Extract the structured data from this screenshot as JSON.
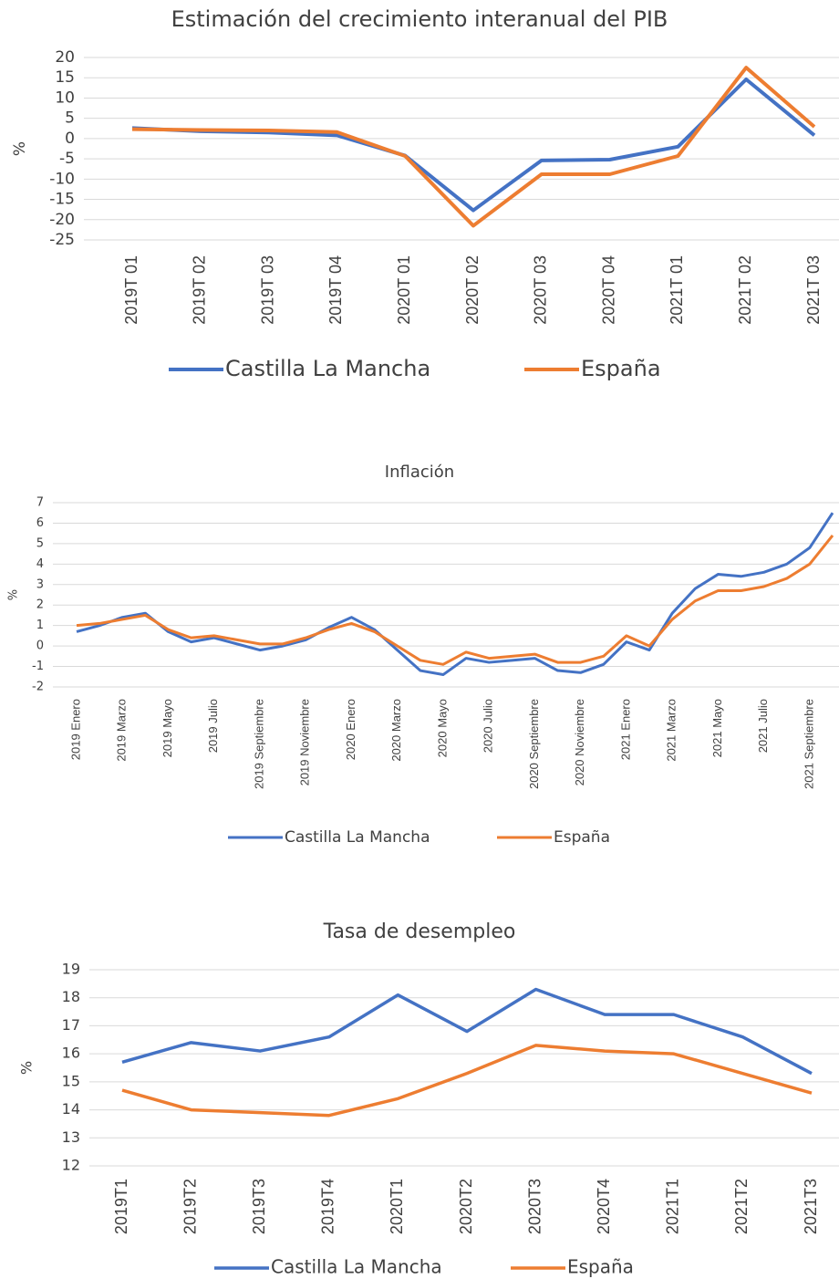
{
  "chart_data": [
    {
      "type": "line",
      "title": "Estimación del crecimiento interanual del PIB",
      "y_label": "%",
      "categories": [
        "2019T 01",
        "2019T 02",
        "2019T 03",
        "2019T 04",
        "2020T 01",
        "2020T 02",
        "2020T 03",
        "2020T 04",
        "2021T 01",
        "2021T 02",
        "2021T 03"
      ],
      "series": [
        {
          "name": "Castilla La Mancha",
          "color": "#4472c4",
          "values": [
            2.6,
            1.8,
            1.5,
            0.8,
            -4.2,
            -17.7,
            -5.4,
            -5.2,
            -2.0,
            14.6,
            0.8
          ]
        },
        {
          "name": "España",
          "color": "#ed7d31",
          "values": [
            2.3,
            2.1,
            2.0,
            1.6,
            -4.3,
            -21.5,
            -8.8,
            -8.8,
            -4.3,
            17.5,
            2.9
          ]
        }
      ],
      "ylim": [
        -25,
        20
      ],
      "yticks": [
        -25,
        -20,
        -15,
        -10,
        -5,
        0,
        5,
        10,
        15,
        20
      ],
      "grid": true,
      "legend": "bottom"
    },
    {
      "type": "line",
      "title": "Inflación",
      "y_label": "%",
      "categories": [
        "2019 Enero",
        null,
        "2019 Marzo",
        null,
        "2019 Mayo",
        null,
        "2019 Julio",
        null,
        "2019 Septiembre",
        null,
        "2019 Noviembre",
        null,
        "2020 Enero",
        null,
        "2020 Marzo",
        null,
        "2020 Mayo",
        null,
        "2020 Julio",
        null,
        "2020 Septiembre",
        null,
        "2020 Noviembre",
        null,
        "2021 Enero",
        null,
        "2021 Marzo",
        null,
        "2021 Mayo",
        null,
        "2021 Julio",
        null,
        "2021 Septiembre",
        null
      ],
      "series": [
        {
          "name": "Castilla La Mancha",
          "color": "#4472c4",
          "values": [
            0.7,
            1.0,
            1.4,
            1.6,
            0.7,
            0.2,
            0.4,
            0.1,
            -0.2,
            0.0,
            0.3,
            0.9,
            1.4,
            0.8,
            -0.2,
            -1.2,
            -1.4,
            -0.6,
            -0.8,
            -0.7,
            -0.6,
            -1.2,
            -1.3,
            -0.9,
            0.2,
            -0.2,
            1.6,
            2.8,
            3.5,
            3.4,
            3.6,
            4.0,
            4.8,
            6.5
          ]
        },
        {
          "name": "España",
          "color": "#ed7d31",
          "values": [
            1.0,
            1.1,
            1.3,
            1.5,
            0.8,
            0.4,
            0.5,
            0.3,
            0.1,
            0.1,
            0.4,
            0.8,
            1.1,
            0.7,
            0.0,
            -0.7,
            -0.9,
            -0.3,
            -0.6,
            -0.5,
            -0.4,
            -0.8,
            -0.8,
            -0.5,
            0.5,
            0.0,
            1.3,
            2.2,
            2.7,
            2.7,
            2.9,
            3.3,
            4.0,
            5.4
          ]
        }
      ],
      "ylim": [
        -2,
        7
      ],
      "yticks": [
        -2,
        -1,
        0,
        1,
        2,
        3,
        4,
        5,
        6,
        7
      ],
      "grid": true,
      "legend": "bottom"
    },
    {
      "type": "line",
      "title": "Tasa de desempleo",
      "y_label": "%",
      "categories": [
        "2019T1",
        "2019T2",
        "2019T3",
        "2019T4",
        "2020T1",
        "2020T2",
        "2020T3",
        "2020T4",
        "2021T1",
        "2021T2",
        "2021T3"
      ],
      "series": [
        {
          "name": "Castilla La Mancha",
          "color": "#4472c4",
          "values": [
            15.7,
            16.4,
            16.1,
            16.6,
            18.1,
            16.8,
            18.3,
            17.4,
            17.4,
            16.6,
            15.3
          ]
        },
        {
          "name": "España",
          "color": "#ed7d31",
          "values": [
            14.7,
            14.0,
            13.9,
            13.8,
            14.4,
            15.3,
            16.3,
            16.1,
            16.0,
            15.3,
            14.6
          ]
        }
      ],
      "ylim": [
        12,
        19
      ],
      "yticks": [
        12,
        13,
        14,
        15,
        16,
        17,
        18,
        19
      ],
      "grid": true,
      "legend": "bottom"
    }
  ]
}
